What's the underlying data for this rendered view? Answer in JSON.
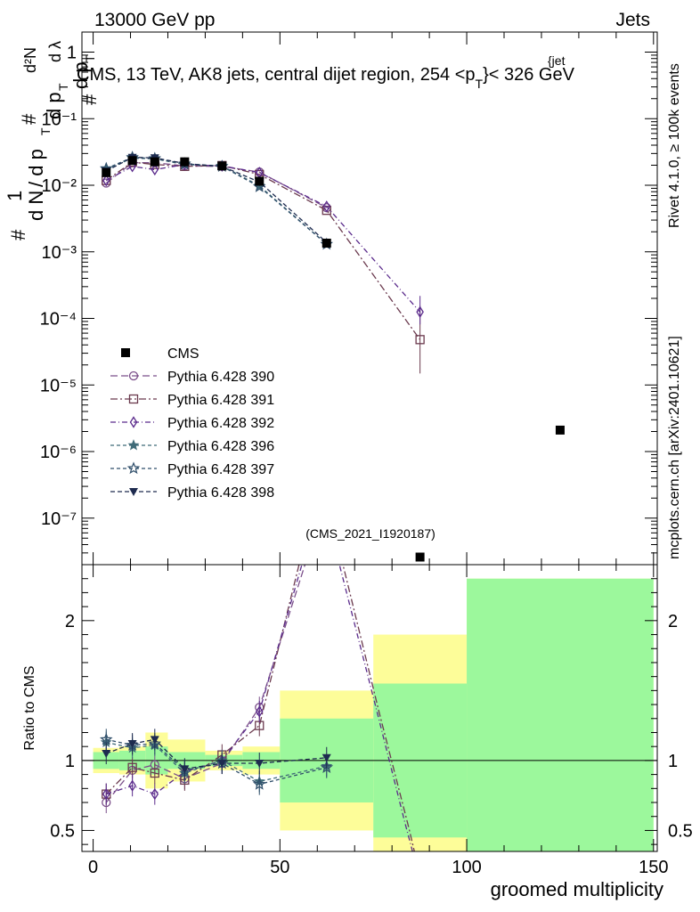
{
  "header": {
    "left": "13000 GeV pp",
    "right": "Jets",
    "title": "CMS, 13 TeV, AK8 jets, central dijet region, 254 <p",
    "title_sub": "T",
    "title_sup": "{jet",
    "title_end": "}< 326 GeV",
    "watermark_rivet": "Rivet 4.1.0, ≥ 100k events",
    "watermark_site": "mcplots.cern.ch [arXiv:2401.10621]",
    "analysis": "(CMS_2021_I1920187)"
  },
  "ylabel": {
    "part1": "#",
    "part2": "1",
    "part3": "d N",
    "part4": "/ d p",
    "sub_T1": "T",
    "part5": "#",
    "part6": "d p",
    "sub_T2": "T",
    "part7": "d²N",
    "part8": "d λ",
    "part9": "#",
    "part10": "d p",
    "sub_T3": "T"
  },
  "ratio_ylabel": "Ratio to CMS",
  "xlabel": "groomed multiplicity",
  "colors": {
    "cms": "#000000",
    "p390": "#7b4f8a",
    "p391": "#6b3a4e",
    "p392": "#5b2b8c",
    "p396": "#3f6b78",
    "p397": "#2f4e6a",
    "p398": "#1e2b4f",
    "band_inner": "#9cf89c",
    "band_outer": "#fdfd99"
  },
  "chart_data": {
    "type": "line",
    "xlim": [
      -3,
      151
    ],
    "ylim_main": [
      2e-08,
      2.0
    ],
    "ylim_ratio": [
      0.35,
      2.4
    ],
    "main_yticks": [
      "10⁻⁷",
      "10⁻⁶",
      "10⁻⁵",
      "10⁻⁴",
      "10⁻³",
      "10⁻²",
      "10⁻¹",
      "1"
    ],
    "main_ytick_values": [
      1e-07,
      1e-06,
      1e-05,
      0.0001,
      0.001,
      0.01,
      0.1,
      1
    ],
    "xticks": [
      0,
      50,
      100,
      150
    ],
    "xtick_labels": [
      "0",
      "50",
      "100",
      "150"
    ],
    "ratio_yticks": [
      0.5,
      1,
      2
    ],
    "ratio_ytick_labels": [
      "0.5",
      "1",
      "2"
    ],
    "x": [
      3.5,
      10.5,
      16.5,
      24.5,
      34.5,
      44.5,
      62.5,
      87.5,
      125
    ],
    "bins": [
      [
        0,
        7
      ],
      [
        7,
        14
      ],
      [
        14,
        20
      ],
      [
        20,
        30
      ],
      [
        30,
        40
      ],
      [
        40,
        50
      ],
      [
        50,
        75
      ],
      [
        75,
        100
      ],
      [
        100,
        150
      ]
    ],
    "cms": [
      0.0155,
      0.0235,
      0.0225,
      0.0225,
      0.0195,
      0.0115,
      0.00135,
      2.6e-08,
      2.1e-06
    ],
    "cms_rel_err_inner": [
      0.06,
      0.07,
      0.1,
      0.06,
      0.04,
      0.06,
      0.3,
      0.55,
      1.3
    ],
    "cms_rel_err_outer": [
      0.09,
      0.1,
      0.2,
      0.15,
      0.07,
      0.1,
      0.5,
      0.9,
      1.3
    ],
    "legend": [
      {
        "key": "cms",
        "label": "CMS"
      },
      {
        "key": "p390",
        "label": "Pythia 6.428 390"
      },
      {
        "key": "p391",
        "label": "Pythia 6.428 391"
      },
      {
        "key": "p392",
        "label": "Pythia 6.428 392"
      },
      {
        "key": "p396",
        "label": "Pythia 6.428 396"
      },
      {
        "key": "p397",
        "label": "Pythia 6.428 397"
      },
      {
        "key": "p398",
        "label": "Pythia 6.428 398"
      }
    ],
    "series": [
      {
        "key": "p390",
        "name": "Pythia 6.428 390",
        "marker": "circle",
        "dash": "8,4",
        "x": [
          3.5,
          10.5,
          16.5,
          24.5,
          34.5,
          44.5,
          62.5
        ],
        "values": [
          0.0108,
          0.0218,
          0.0218,
          0.0195,
          0.0192,
          0.0158,
          0.0046
        ]
      },
      {
        "key": "p391",
        "name": "Pythia 6.428 391",
        "marker": "square",
        "dash": "8,3,2,3",
        "x": [
          3.5,
          10.5,
          16.5,
          24.5,
          34.5,
          44.5,
          62.5,
          87.5
        ],
        "values": [
          0.0118,
          0.0222,
          0.0205,
          0.0192,
          0.0198,
          0.0145,
          0.0042,
          4.8e-05
        ]
      },
      {
        "key": "p392",
        "name": "Pythia 6.428 392",
        "marker": "diamond",
        "dash": "6,3,1,3",
        "x": [
          3.5,
          10.5,
          16.5,
          24.5,
          34.5,
          44.5,
          62.5,
          87.5
        ],
        "values": [
          0.0118,
          0.0192,
          0.0172,
          0.0205,
          0.0195,
          0.0155,
          0.0048,
          0.000125
        ]
      },
      {
        "key": "p396",
        "name": "Pythia 6.428 396",
        "marker": "star",
        "dash": "4,3",
        "x": [
          3.5,
          10.5,
          16.5,
          24.5,
          34.5,
          44.5,
          62.5
        ],
        "values": [
          0.0175,
          0.0255,
          0.025,
          0.0205,
          0.0195,
          0.0098,
          0.0013
        ]
      },
      {
        "key": "p397",
        "name": "Pythia 6.428 397",
        "marker": "star-open",
        "dash": "4,3",
        "x": [
          3.5,
          10.5,
          16.5,
          24.5,
          34.5,
          44.5,
          62.5
        ],
        "values": [
          0.0178,
          0.0262,
          0.0252,
          0.021,
          0.0192,
          0.0095,
          0.0013
        ]
      },
      {
        "key": "p398",
        "name": "Pythia 6.428 398",
        "marker": "triangle-down",
        "dash": "5,3",
        "x": [
          3.5,
          10.5,
          16.5,
          24.5,
          34.5,
          44.5,
          62.5
        ],
        "values": [
          0.0163,
          0.0262,
          0.0258,
          0.0212,
          0.0192,
          0.0112,
          0.00138
        ]
      }
    ],
    "ratio_series": [
      {
        "key": "p390",
        "x": [
          3.5,
          10.5,
          16.5,
          24.5,
          34.5,
          44.5,
          58.5
        ],
        "values": [
          0.7,
          0.93,
          0.97,
          0.87,
          0.98,
          1.38,
          2.55
        ]
      },
      {
        "key": "p391",
        "x": [
          3.5,
          10.5,
          16.5,
          24.5,
          34.5,
          44.5,
          56.5
        ],
        "values": [
          0.76,
          0.95,
          0.91,
          0.86,
          1.04,
          1.25,
          2.55
        ]
      },
      {
        "key": "p392",
        "x": [
          3.5,
          10.5,
          16.5,
          24.5,
          34.5,
          44.5,
          57.5
        ],
        "values": [
          0.76,
          0.82,
          0.76,
          0.92,
          1.0,
          1.35,
          2.55
        ]
      },
      {
        "key": "p392",
        "x": [
          64.5,
          75.5,
          83.5,
          85.5
        ],
        "values": [
          2.55,
          1.4,
          0.55,
          0.35
        ]
      },
      {
        "key": "p391",
        "x": [
          65.5,
          76.5,
          84.5,
          86.0
        ],
        "values": [
          2.55,
          1.35,
          0.52,
          0.35
        ]
      },
      {
        "key": "p396",
        "x": [
          3.5,
          10.5,
          16.5,
          24.5,
          34.5,
          44.5,
          62.5
        ],
        "values": [
          1.13,
          1.09,
          1.11,
          0.91,
          1.0,
          0.85,
          0.96
        ]
      },
      {
        "key": "p397",
        "x": [
          3.5,
          10.5,
          16.5,
          24.5,
          34.5,
          44.5,
          62.5
        ],
        "values": [
          1.15,
          1.11,
          1.12,
          0.93,
          0.98,
          0.83,
          0.95
        ]
      },
      {
        "key": "p398",
        "x": [
          3.5,
          10.5,
          16.5,
          24.5,
          34.5,
          44.5,
          62.5
        ],
        "values": [
          1.05,
          1.12,
          1.15,
          0.94,
          0.98,
          0.98,
          1.02
        ]
      }
    ]
  }
}
